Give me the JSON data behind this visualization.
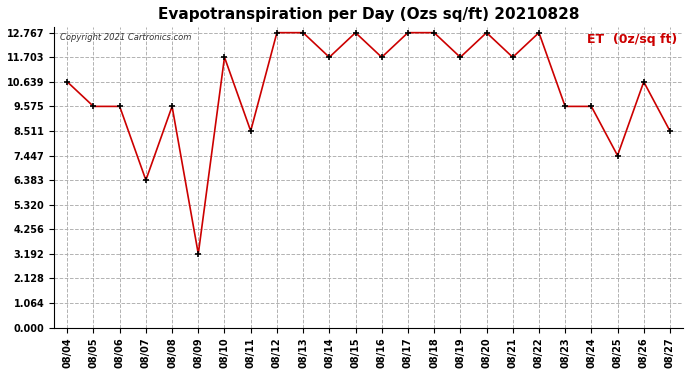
{
  "title": "Evapotranspiration per Day (Ozs sq/ft) 20210828",
  "copyright": "Copyright 2021 Cartronics.com",
  "legend_label": "ET  (0z/sq ft)",
  "x_labels": [
    "08/04",
    "08/05",
    "08/06",
    "08/07",
    "08/08",
    "08/09",
    "08/10",
    "08/11",
    "08/12",
    "08/13",
    "08/14",
    "08/15",
    "08/16",
    "08/17",
    "08/18",
    "08/19",
    "08/20",
    "08/21",
    "08/22",
    "08/23",
    "08/24",
    "08/25",
    "08/26",
    "08/27"
  ],
  "y_values": [
    10.639,
    9.575,
    9.575,
    6.383,
    9.575,
    3.192,
    11.703,
    8.511,
    12.767,
    12.767,
    11.703,
    12.767,
    11.703,
    12.767,
    12.767,
    11.703,
    12.767,
    11.703,
    12.767,
    9.575,
    9.575,
    7.447,
    10.639,
    8.511
  ],
  "line_color": "#cc0000",
  "marker_color": "#000000",
  "background_color": "#ffffff",
  "yticks": [
    0.0,
    1.064,
    2.128,
    3.192,
    4.256,
    5.32,
    6.383,
    7.447,
    8.511,
    9.575,
    10.639,
    11.703,
    12.767
  ],
  "ylim": [
    0.0,
    13.0
  ],
  "grid_color": "#aaaaaa",
  "title_fontsize": 11,
  "tick_fontsize": 7
}
